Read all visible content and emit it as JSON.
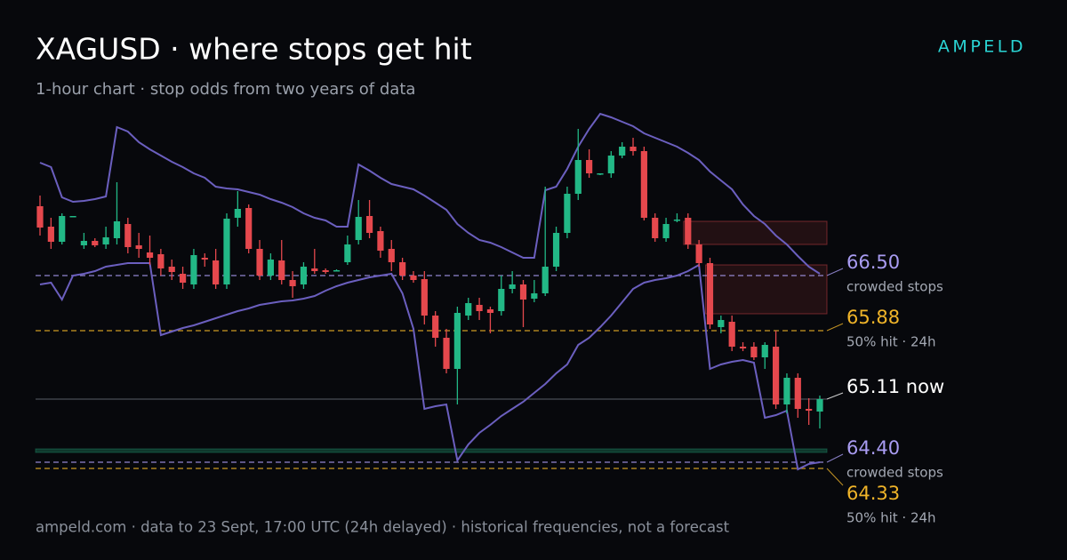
{
  "chart_data": {
    "type": "candlestick",
    "title": "XAGUSD · where stops get hit",
    "subtitle": "1-hour chart · stop odds from two years of data",
    "brand": "AMPELD",
    "footer": "ampeld.com · data to 23 Sept, 17:00 UTC (24h delayed) · historical frequencies, not a forecast",
    "ylim": [
      64.2,
      68.4
    ],
    "up_color": "#22b886",
    "down_color": "#e5484d",
    "candles": {
      "open": [
        67.28,
        67.05,
        66.88,
        67.16,
        66.84,
        66.89,
        66.85,
        66.92,
        67.08,
        66.84,
        66.76,
        66.74,
        66.6,
        66.52,
        66.4,
        66.7,
        66.67,
        66.4,
        67.15,
        67.26,
        66.8,
        66.5,
        66.67,
        66.45,
        66.4,
        66.58,
        66.56,
        66.55,
        66.65,
        66.9,
        67.17,
        67.0,
        66.8,
        66.65,
        66.5,
        66.46,
        66.05,
        65.8,
        65.45,
        66.05,
        66.17,
        66.12,
        66.1,
        66.35,
        66.4,
        66.24,
        66.3,
        66.6,
        66.98,
        67.42,
        67.8,
        67.64,
        67.65,
        67.85,
        67.95,
        67.9,
        67.15,
        66.92,
        67.12,
        67.15,
        66.85,
        66.64,
        65.92,
        65.98,
        65.7,
        65.7,
        65.58,
        65.7,
        65.05,
        65.35,
        65.0,
        64.97
      ],
      "high": [
        67.4,
        67.15,
        67.2,
        67.17,
        66.98,
        66.92,
        67.05,
        67.55,
        67.15,
        66.98,
        66.95,
        66.8,
        66.68,
        66.6,
        66.8,
        66.75,
        66.8,
        67.2,
        67.45,
        67.3,
        66.9,
        66.75,
        66.9,
        66.55,
        66.65,
        66.8,
        66.58,
        66.57,
        66.95,
        67.35,
        67.35,
        67.05,
        66.9,
        66.7,
        66.55,
        66.55,
        66.1,
        65.9,
        66.15,
        66.25,
        66.25,
        66.15,
        66.5,
        66.55,
        66.45,
        66.45,
        67.5,
        67.05,
        67.5,
        68.15,
        67.92,
        67.65,
        67.9,
        68.0,
        68.05,
        67.95,
        67.2,
        67.15,
        67.2,
        67.2,
        66.9,
        66.7,
        66.05,
        66.05,
        65.75,
        65.75,
        65.75,
        65.88,
        65.4,
        65.4,
        65.12,
        65.15
      ],
      "low": [
        66.95,
        66.8,
        66.85,
        67.16,
        66.8,
        66.82,
        66.8,
        66.85,
        66.75,
        66.7,
        66.62,
        66.5,
        66.45,
        66.35,
        66.35,
        66.6,
        66.35,
        66.35,
        67.05,
        66.75,
        66.45,
        66.45,
        66.4,
        66.25,
        66.35,
        66.52,
        66.52,
        66.55,
        66.62,
        66.85,
        66.92,
        66.7,
        66.55,
        66.45,
        66.42,
        65.95,
        65.7,
        65.4,
        65.05,
        66.0,
        66.0,
        65.85,
        66.05,
        66.3,
        65.92,
        66.2,
        66.27,
        66.55,
        66.92,
        67.35,
        67.6,
        67.63,
        67.6,
        67.82,
        67.85,
        67.12,
        66.88,
        66.88,
        67.1,
        66.8,
        66.6,
        65.9,
        65.85,
        65.65,
        65.65,
        65.55,
        65.45,
        65.0,
        64.95,
        64.9,
        64.82,
        64.78
      ],
      "close": [
        67.04,
        66.88,
        67.17,
        67.17,
        66.89,
        66.84,
        66.93,
        67.11,
        66.82,
        66.8,
        66.7,
        66.58,
        66.54,
        66.42,
        66.73,
        66.68,
        66.4,
        67.14,
        67.25,
        66.8,
        66.5,
        66.68,
        66.45,
        66.38,
        66.6,
        66.55,
        66.54,
        66.56,
        66.85,
        67.16,
        66.98,
        66.78,
        66.65,
        66.5,
        66.45,
        66.05,
        65.8,
        65.45,
        66.08,
        66.19,
        66.1,
        66.08,
        66.35,
        66.4,
        66.23,
        66.3,
        66.6,
        66.98,
        67.42,
        67.8,
        67.65,
        67.65,
        67.85,
        67.95,
        67.9,
        67.15,
        66.92,
        67.08,
        67.13,
        66.85,
        66.64,
        65.95,
        66.0,
        65.7,
        65.68,
        65.58,
        65.72,
        65.05,
        65.35,
        65.0,
        64.98,
        65.11
      ]
    },
    "bands": {
      "color": "#6b5fbf",
      "upper": [
        67.77,
        67.72,
        67.38,
        67.33,
        67.34,
        67.36,
        67.39,
        68.17,
        68.12,
        68.0,
        67.92,
        67.85,
        67.78,
        67.72,
        67.65,
        67.6,
        67.5,
        67.48,
        67.47,
        67.44,
        67.41,
        67.36,
        67.32,
        67.27,
        67.2,
        67.15,
        67.12,
        67.05,
        67.05,
        67.75,
        67.68,
        67.6,
        67.53,
        67.5,
        67.47,
        67.4,
        67.32,
        67.24,
        67.08,
        66.98,
        66.9,
        66.87,
        66.82,
        66.76,
        66.7,
        66.7,
        67.46,
        67.5,
        67.7,
        67.95,
        68.15,
        68.32,
        68.28,
        68.23,
        68.18,
        68.1,
        68.05,
        68.0,
        67.95,
        67.88,
        67.8,
        67.67,
        67.57,
        67.47,
        67.3,
        67.17,
        67.08,
        66.95,
        66.85,
        66.72,
        66.6,
        66.52
      ],
      "lower": [
        66.4,
        66.42,
        66.23,
        66.5,
        66.52,
        66.55,
        66.6,
        66.62,
        66.64,
        66.64,
        66.64,
        65.83,
        65.87,
        65.91,
        65.94,
        65.98,
        66.02,
        66.06,
        66.1,
        66.13,
        66.17,
        66.19,
        66.21,
        66.22,
        66.24,
        66.27,
        66.33,
        66.38,
        66.42,
        66.45,
        66.48,
        66.5,
        66.52,
        66.3,
        65.9,
        65.0,
        65.03,
        65.05,
        64.42,
        64.6,
        64.73,
        64.82,
        64.92,
        65.0,
        65.08,
        65.18,
        65.28,
        65.4,
        65.5,
        65.72,
        65.8,
        65.92,
        66.05,
        66.2,
        66.35,
        66.42,
        66.45,
        66.47,
        66.5,
        66.55,
        66.62,
        65.45,
        65.5,
        65.53,
        65.55,
        65.52,
        64.9,
        64.93,
        64.98,
        64.32,
        64.38,
        64.4
      ]
    },
    "zones": [
      {
        "low": 66.85,
        "high": 67.11,
        "start": 59,
        "color": "#e5484d"
      },
      {
        "low": 66.07,
        "high": 66.62,
        "start": 61,
        "color": "#e5484d"
      },
      {
        "low": 64.51,
        "high": 64.55,
        "start": 0,
        "color": "#1f8f6a"
      }
    ],
    "levels": [
      {
        "value": 66.5,
        "label": "66.50",
        "note": "crowded stops",
        "color": "#a99cf2",
        "dashed": true
      },
      {
        "value": 65.88,
        "label": "65.88",
        "note": "50% hit · 24h",
        "color": "#f0b429",
        "dashed": true
      },
      {
        "value": 65.11,
        "label": "65.11 now",
        "color": "#ffffff",
        "dashed": false
      },
      {
        "value": 64.4,
        "label": "64.40",
        "note": "crowded stops",
        "color": "#a99cf2",
        "dashed": true
      },
      {
        "value": 64.33,
        "label": "64.33",
        "note": "50% hit · 24h",
        "color": "#f0b429",
        "dashed": true
      }
    ]
  }
}
